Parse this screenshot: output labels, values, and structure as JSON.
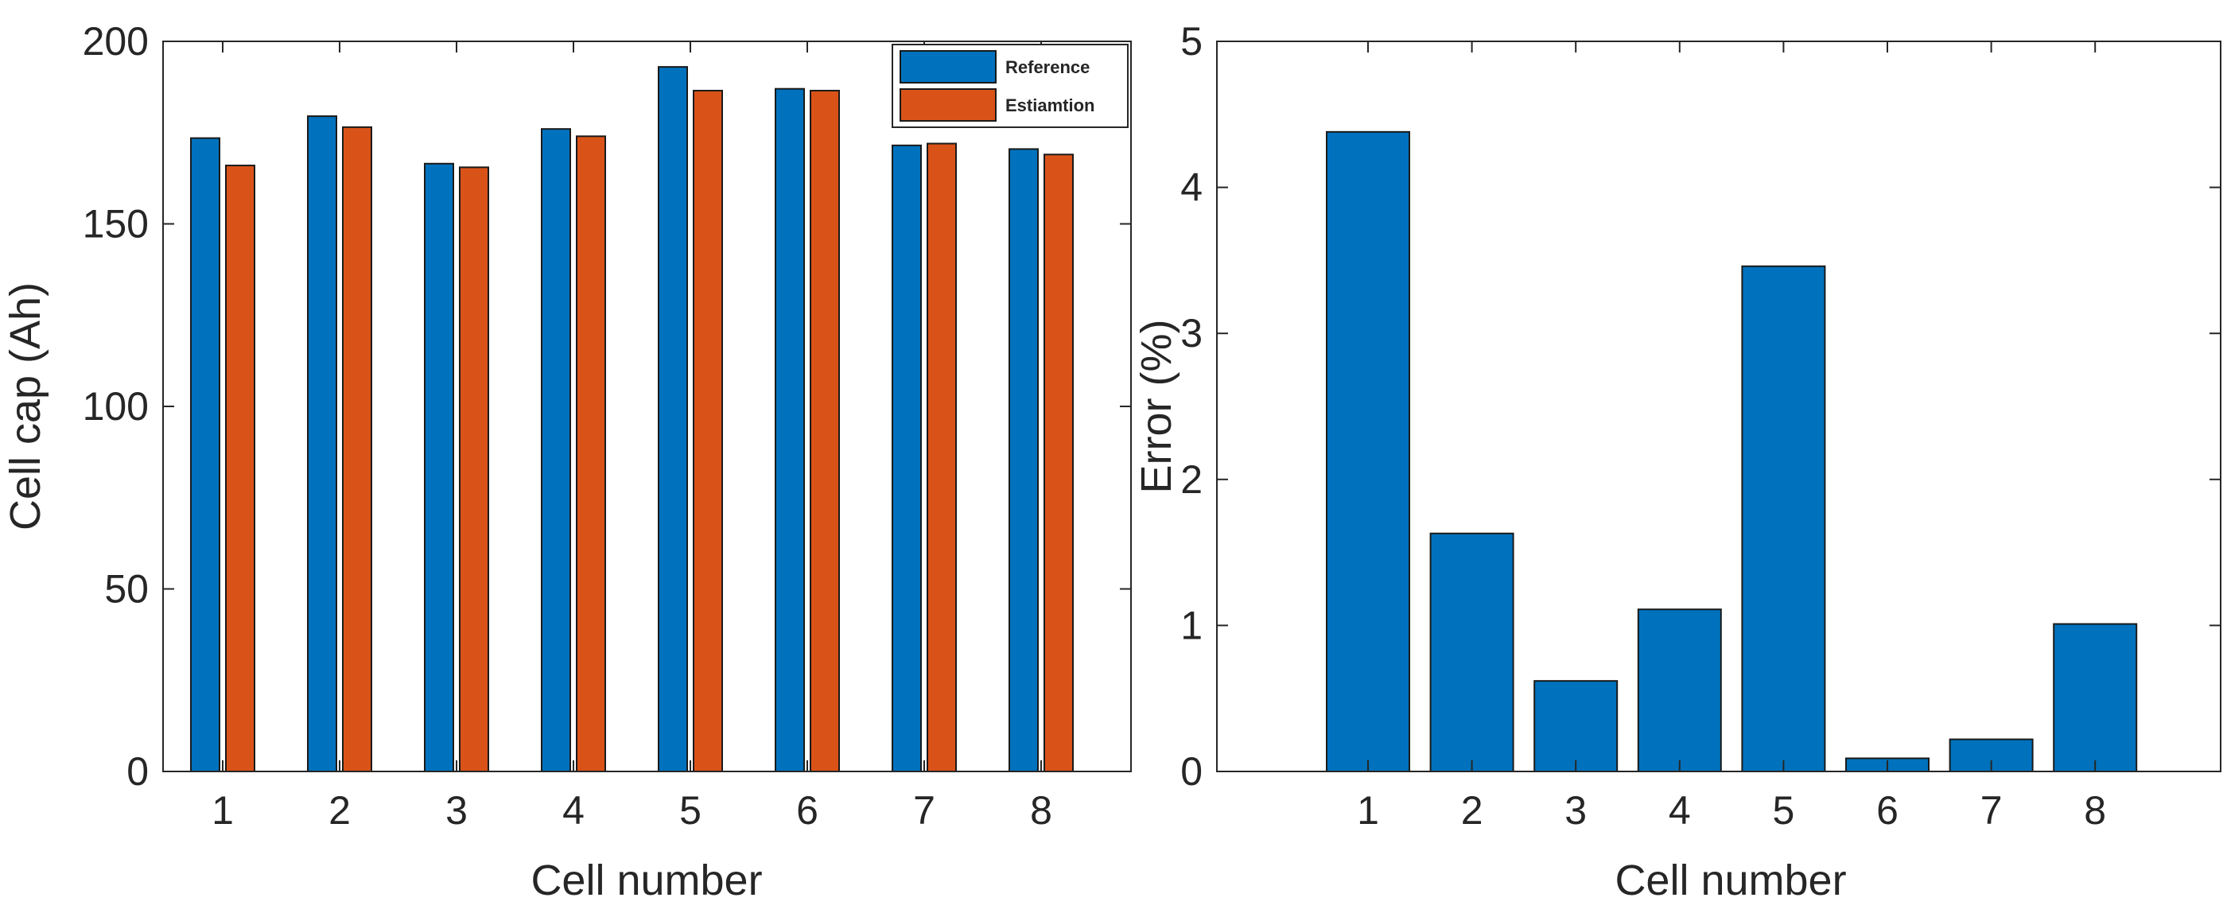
{
  "chart_data": [
    {
      "type": "bar",
      "categories": [
        "1",
        "2",
        "3",
        "4",
        "5",
        "6",
        "7",
        "8"
      ],
      "series": [
        {
          "name": "Reference",
          "color": "#0072BD",
          "values": [
            173.5,
            179.5,
            166.5,
            176,
            193,
            187,
            171.5,
            170.5
          ]
        },
        {
          "name": "Estiamtion",
          "color": "#D95319",
          "values": [
            166,
            176.5,
            165.5,
            174,
            186.5,
            186.5,
            172,
            169
          ]
        }
      ],
      "title": "",
      "xlabel": "Cell number",
      "ylabel": "Cell cap (Ah)",
      "ylim": [
        0,
        200
      ],
      "yticks": [
        "0",
        "50",
        "100",
        "150",
        "200"
      ],
      "legend_position": "top-right",
      "grid": false
    },
    {
      "type": "bar",
      "categories": [
        "1",
        "2",
        "3",
        "4",
        "5",
        "6",
        "7",
        "8"
      ],
      "series": [
        {
          "name": "Error",
          "color": "#0072BD",
          "values": [
            4.38,
            1.63,
            0.62,
            1.11,
            3.46,
            0.09,
            0.22,
            1.01
          ]
        }
      ],
      "title": "",
      "xlabel": "Cell number",
      "ylabel": "Error (%)",
      "ylim": [
        0,
        5
      ],
      "yticks": [
        "0",
        "1",
        "2",
        "3",
        "4",
        "5"
      ],
      "grid": false
    }
  ]
}
